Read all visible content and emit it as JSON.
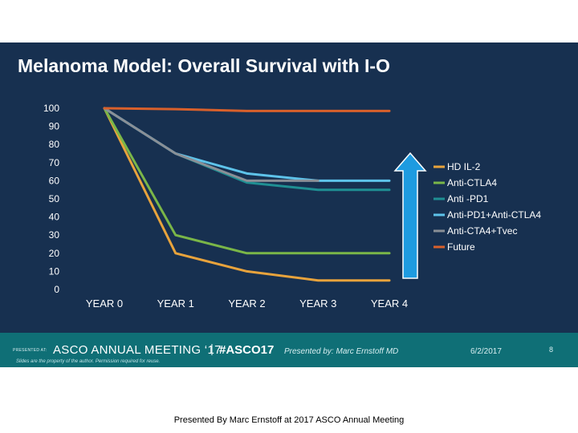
{
  "slide": {
    "title": "Melanoma Model: Overall Survival with I-O"
  },
  "colors": {
    "background": "#173050",
    "footer": "#0f6f76",
    "arrow": "#1e9be0",
    "axis_text": "#ffffff"
  },
  "chart_data": {
    "type": "line",
    "title": "Melanoma Model: Overall Survival with I-O",
    "xlabel": "",
    "ylabel": "",
    "categories": [
      "YEAR 0",
      "YEAR 1",
      "YEAR 2",
      "YEAR 3",
      "YEAR 4"
    ],
    "ylim": [
      0,
      100
    ],
    "yticks": [
      0,
      10,
      20,
      30,
      40,
      50,
      60,
      70,
      80,
      90,
      100
    ],
    "grid": false,
    "legend_position": "right",
    "annotation": "upward arrow between YEAR 4 and legend",
    "series": [
      {
        "name": "HD IL-2",
        "color": "#e8a33c",
        "values": [
          100,
          20,
          10,
          5,
          5
        ]
      },
      {
        "name": "Anti-CTLA4",
        "color": "#7ab648",
        "values": [
          100,
          30,
          20,
          20,
          20
        ]
      },
      {
        "name": "Anti -PD1",
        "color": "#1f8f93",
        "values": [
          100,
          75,
          59,
          55,
          55
        ]
      },
      {
        "name": "Anti-PD1+Anti-CTLA4",
        "color": "#5ec3ea",
        "values": [
          100,
          75,
          64,
          60,
          60
        ]
      },
      {
        "name": "Anti-CTA4+Tvec",
        "color": "#8a8f96",
        "values": [
          100,
          75,
          60,
          60,
          null
        ]
      },
      {
        "name": "Future",
        "color": "#d9602b",
        "values": [
          100,
          99.5,
          98.5,
          98.5,
          98.5
        ]
      }
    ]
  },
  "footer": {
    "presented_at": "PRESENTED AT:",
    "meeting": "ASCO ANNUAL MEETING ‘17",
    "separator": "|",
    "hashtag": "#ASCO17",
    "presenter": "Presented by: Marc Ernstoff MD",
    "date": "6/2/2017",
    "slide_number": "8",
    "disclaimer": "Slides are the property of the author. Permission required for reuse."
  },
  "caption": "Presented By Marc Ernstoff at 2017 ASCO Annual Meeting"
}
